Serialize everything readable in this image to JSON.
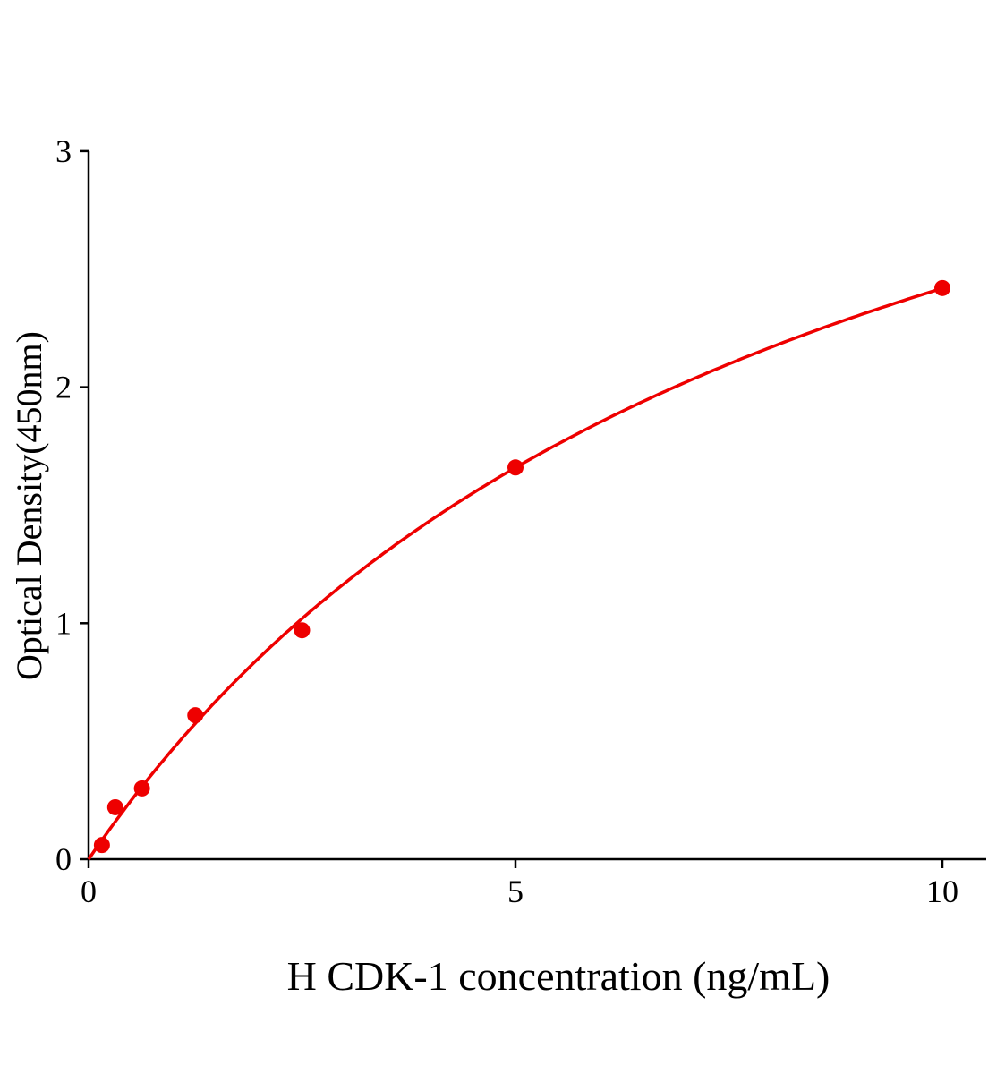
{
  "chart_data": {
    "type": "scatter",
    "title": "",
    "xlabel": "H CDK-1 concentration (ng/mL)",
    "ylabel": "Optical Density(450nm)",
    "xlim": [
      0,
      10.5
    ],
    "ylim": [
      0,
      3
    ],
    "xticks": [
      0,
      5,
      10
    ],
    "xtick_labels": [
      "0",
      "5",
      "10"
    ],
    "yticks": [
      0,
      1,
      2,
      3
    ],
    "ytick_labels": [
      "0",
      "1",
      "2",
      "3"
    ],
    "grid": false,
    "color": "#ee0000",
    "points": [
      {
        "x": 0.156,
        "y": 0.06
      },
      {
        "x": 0.3125,
        "y": 0.22
      },
      {
        "x": 0.625,
        "y": 0.3
      },
      {
        "x": 1.25,
        "y": 0.61
      },
      {
        "x": 2.5,
        "y": 0.97
      },
      {
        "x": 5,
        "y": 1.66
      },
      {
        "x": 10,
        "y": 2.42
      }
    ],
    "fit_curve": true
  }
}
